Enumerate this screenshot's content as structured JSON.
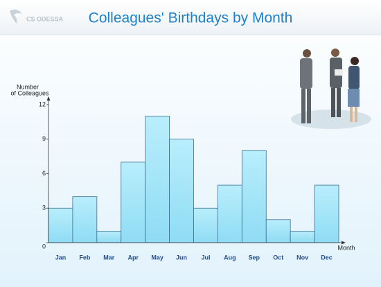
{
  "logo": "CS ODESSA",
  "chart_data": {
    "type": "bar",
    "title": "Colleagues' Birthdays by Month",
    "y_label": [
      "Number",
      "of Colleagues"
    ],
    "x_label": "Month",
    "categories": [
      "Jan",
      "Feb",
      "Mar",
      "Apr",
      "May",
      "Jun",
      "Jul",
      "Aug",
      "Sep",
      "Oct",
      "Nov",
      "Dec"
    ],
    "values": [
      3,
      4,
      1,
      7,
      11,
      9,
      3,
      5,
      8,
      2,
      1,
      5
    ],
    "color": "#a8e6f7",
    "ylim": [
      0,
      12
    ],
    "yticks": [
      0,
      3,
      6,
      9,
      12
    ],
    "grid": false
  }
}
